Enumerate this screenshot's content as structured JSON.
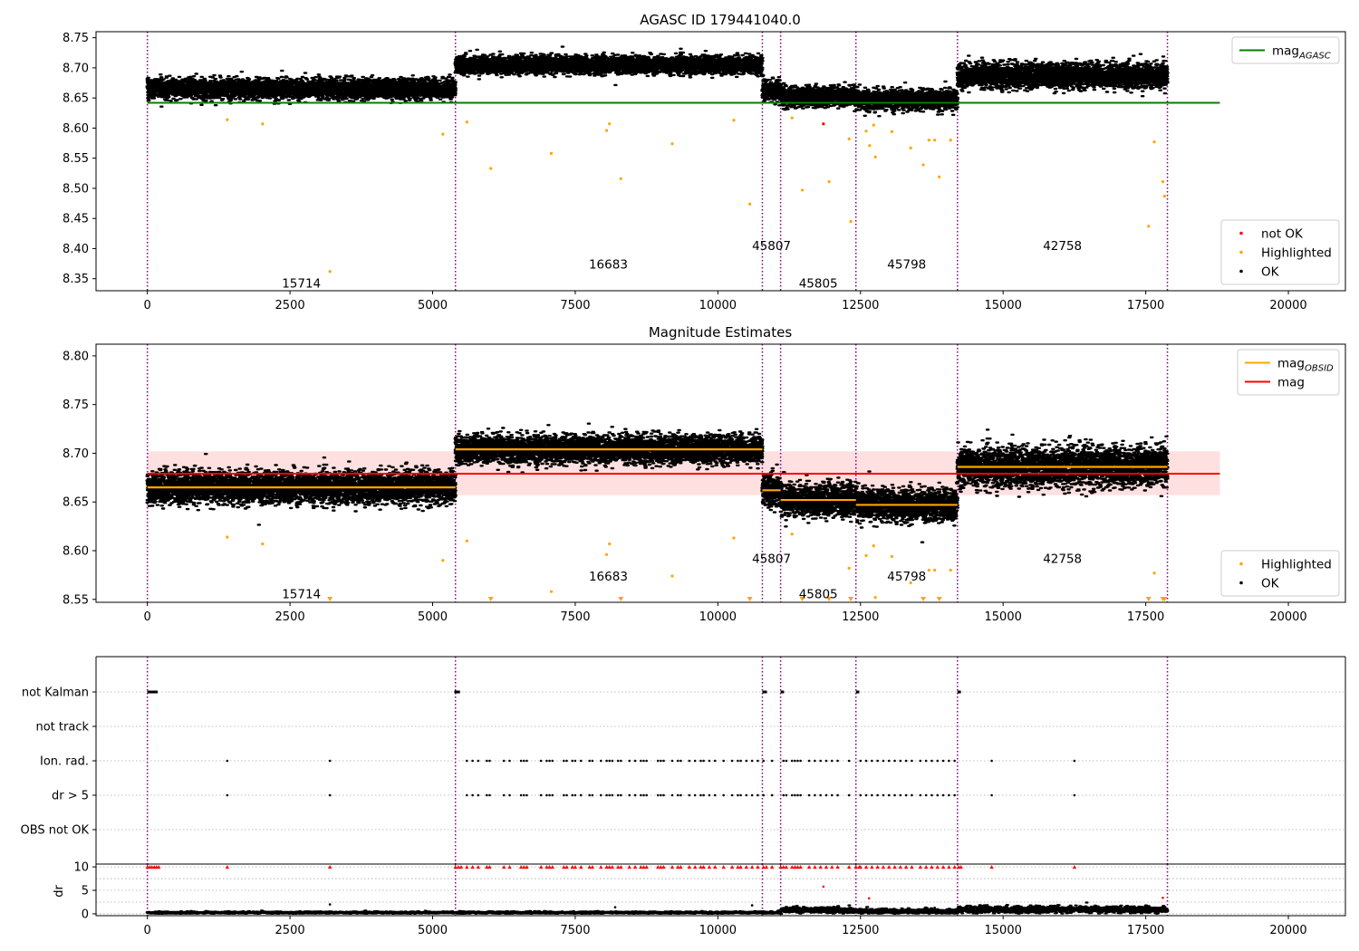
{
  "chart_data": [
    {
      "type": "scatter",
      "title": "AGASC ID 179441040.0",
      "xlim": [
        -900,
        21000
      ],
      "ylim": [
        8.33,
        8.76
      ],
      "x_ticks": [
        0,
        2500,
        5000,
        7500,
        10000,
        12500,
        15000,
        17500,
        20000
      ],
      "y_ticks": [
        8.35,
        8.4,
        8.45,
        8.5,
        8.55,
        8.6,
        8.65,
        8.7,
        8.75
      ],
      "x_tick_labels": [
        "0",
        "2500",
        "5000",
        "7500",
        "10000",
        "12500",
        "15000",
        "17500",
        "20000"
      ],
      "y_tick_labels": [
        "8.35",
        "8.40",
        "8.45",
        "8.50",
        "8.55",
        "8.60",
        "8.65",
        "8.70",
        "8.75"
      ],
      "obsid_boundaries": [
        0,
        5400,
        10780,
        11100,
        12420,
        14200,
        17880
      ],
      "hlines": [
        {
          "name": "mag_AGASC",
          "y": 8.642,
          "x_range": [
            0,
            18800
          ],
          "color": "#008000"
        }
      ],
      "segments": [
        {
          "obsid": "15714",
          "x_range": [
            0,
            5400
          ],
          "mean": 8.665,
          "spread": 0.008
        },
        {
          "obsid": "16683",
          "x_range": [
            5400,
            10780
          ],
          "mean": 8.705,
          "spread": 0.007
        },
        {
          "obsid": "45807",
          "x_range": [
            10780,
            11100
          ],
          "mean": 8.662,
          "spread": 0.008
        },
        {
          "obsid": "45805",
          "x_range": [
            11100,
            12420
          ],
          "mean": 8.652,
          "spread": 0.008
        },
        {
          "obsid": "45798",
          "x_range": [
            12420,
            14200
          ],
          "mean": 8.647,
          "spread": 0.008
        },
        {
          "obsid": "42758",
          "x_range": [
            14200,
            17880
          ],
          "mean": 8.687,
          "spread": 0.01
        }
      ],
      "obsid_label_positions": [
        {
          "obsid": "15714",
          "x": 2700,
          "y": 8.343
        },
        {
          "obsid": "16683",
          "x": 8080,
          "y": 8.374
        },
        {
          "obsid": "45807",
          "x": 10940,
          "y": 8.405
        },
        {
          "obsid": "45805",
          "x": 11760,
          "y": 8.343
        },
        {
          "obsid": "45798",
          "x": 13310,
          "y": 8.374
        },
        {
          "obsid": "42758",
          "x": 16040,
          "y": 8.405
        }
      ],
      "highlighted_points": [
        [
          1400,
          8.614
        ],
        [
          2020,
          8.607
        ],
        [
          3200,
          8.362
        ],
        [
          5180,
          8.59
        ],
        [
          5600,
          8.61
        ],
        [
          6020,
          8.533
        ],
        [
          7080,
          8.558
        ],
        [
          8050,
          8.596
        ],
        [
          8100,
          8.607
        ],
        [
          8300,
          8.516
        ],
        [
          9200,
          8.574
        ],
        [
          10280,
          8.613
        ],
        [
          10560,
          8.474
        ],
        [
          11300,
          8.617
        ],
        [
          11480,
          8.497
        ],
        [
          11950,
          8.511
        ],
        [
          12300,
          8.582
        ],
        [
          12330,
          8.445
        ],
        [
          12600,
          8.595
        ],
        [
          12660,
          8.571
        ],
        [
          12730,
          8.605
        ],
        [
          12760,
          8.552
        ],
        [
          13050,
          8.594
        ],
        [
          13380,
          8.567
        ],
        [
          13600,
          8.539
        ],
        [
          13700,
          8.58
        ],
        [
          13800,
          8.58
        ],
        [
          13880,
          8.519
        ],
        [
          14080,
          8.58
        ],
        [
          17550,
          8.437
        ],
        [
          17650,
          8.577
        ],
        [
          17800,
          8.511
        ],
        [
          17830,
          8.487
        ]
      ],
      "not_ok_points": [
        [
          11850,
          8.607
        ]
      ],
      "legends": [
        {
          "position": "top-right",
          "entries": [
            {
              "label": "mag",
              "sub": "AGASC",
              "color": "#008000",
              "kind": "line"
            }
          ]
        },
        {
          "position": "bottom-right",
          "entries": [
            {
              "label": "not OK",
              "color": "#ff0000",
              "kind": "dot"
            },
            {
              "label": "Highlighted",
              "color": "#ffa500",
              "kind": "dot"
            },
            {
              "label": "OK",
              "color": "#000000",
              "kind": "dot"
            }
          ]
        }
      ]
    },
    {
      "type": "scatter",
      "title": "Magnitude Estimates",
      "xlim": [
        -900,
        21000
      ],
      "ylim": [
        8.547,
        8.812
      ],
      "x_ticks": [
        0,
        2500,
        5000,
        7500,
        10000,
        12500,
        15000,
        17500,
        20000
      ],
      "y_ticks": [
        8.55,
        8.6,
        8.65,
        8.7,
        8.75,
        8.8
      ],
      "x_tick_labels": [
        "0",
        "2500",
        "5000",
        "7500",
        "10000",
        "12500",
        "15000",
        "17500",
        "20000"
      ],
      "y_tick_labels": [
        "8.55",
        "8.60",
        "8.65",
        "8.70",
        "8.75",
        "8.80"
      ],
      "obsid_boundaries": [
        0,
        5400,
        10780,
        11100,
        12420,
        14200,
        17880
      ],
      "hlines": [
        {
          "name": "mag",
          "y": 8.679,
          "x_range": [
            0,
            18800
          ],
          "color": "#ff0000"
        }
      ],
      "band": {
        "y_range": [
          8.657,
          8.702
        ],
        "x_range": [
          0,
          18800
        ],
        "color": "#ff0000",
        "opacity": 0.12
      },
      "segments": [
        {
          "obsid": "15714",
          "x_range": [
            0,
            5400
          ],
          "mean": 8.665,
          "spread": 0.008
        },
        {
          "obsid": "16683",
          "x_range": [
            5400,
            10780
          ],
          "mean": 8.704,
          "spread": 0.007
        },
        {
          "obsid": "45807",
          "x_range": [
            10780,
            11100
          ],
          "mean": 8.662,
          "spread": 0.008
        },
        {
          "obsid": "45805",
          "x_range": [
            11100,
            12420
          ],
          "mean": 8.652,
          "spread": 0.008
        },
        {
          "obsid": "45798",
          "x_range": [
            12420,
            14200
          ],
          "mean": 8.647,
          "spread": 0.008
        },
        {
          "obsid": "42758",
          "x_range": [
            14200,
            17880
          ],
          "mean": 8.686,
          "spread": 0.01
        }
      ],
      "obsid_label_positions": [
        {
          "obsid": "15714",
          "x": 2700,
          "y": 8.556
        },
        {
          "obsid": "16683",
          "x": 8080,
          "y": 8.574
        },
        {
          "obsid": "45807",
          "x": 10940,
          "y": 8.592
        },
        {
          "obsid": "45805",
          "x": 11760,
          "y": 8.556
        },
        {
          "obsid": "45798",
          "x": 13310,
          "y": 8.574
        },
        {
          "obsid": "42758",
          "x": 16040,
          "y": 8.592
        }
      ],
      "highlighted_points": [
        [
          1400,
          8.614
        ],
        [
          2020,
          8.607
        ],
        [
          5180,
          8.59
        ],
        [
          5600,
          8.61
        ],
        [
          7080,
          8.558
        ],
        [
          8050,
          8.596
        ],
        [
          8100,
          8.607
        ],
        [
          9200,
          8.574
        ],
        [
          10280,
          8.613
        ],
        [
          11300,
          8.617
        ],
        [
          12300,
          8.582
        ],
        [
          12600,
          8.595
        ],
        [
          12730,
          8.605
        ],
        [
          12760,
          8.552
        ],
        [
          13050,
          8.594
        ],
        [
          13380,
          8.567
        ],
        [
          13700,
          8.58
        ],
        [
          13800,
          8.58
        ],
        [
          14080,
          8.58
        ],
        [
          17650,
          8.577
        ]
      ],
      "clipped_points_x": [
        3200,
        6020,
        8300,
        10560,
        11480,
        11950,
        12330,
        13600,
        13880,
        17550,
        17800,
        17830
      ],
      "legends": [
        {
          "position": "top-right",
          "entries": [
            {
              "label": "mag",
              "sub": "OBSID",
              "color": "#ffa500",
              "kind": "line"
            },
            {
              "label": "mag",
              "sub": "",
              "color": "#ff0000",
              "kind": "line"
            }
          ]
        },
        {
          "position": "bottom-right",
          "entries": [
            {
              "label": "Highlighted",
              "color": "#ffa500",
              "kind": "dot"
            },
            {
              "label": "OK",
              "color": "#000000",
              "kind": "dot"
            }
          ]
        }
      ]
    },
    {
      "type": "scatter",
      "title": "",
      "xlim": [
        -900,
        21000
      ],
      "categories": [
        "not Kalman",
        "not track",
        "Ion. rad.",
        "dr > 5",
        "OBS not OK"
      ],
      "obsid_boundaries": [
        0,
        5400,
        10780,
        11100,
        12420,
        14200,
        17880
      ],
      "flag_points": {
        "not Kalman": [
          [
            0,
            180
          ],
          [
            5380,
            5480
          ],
          [
            10780,
            10860
          ],
          [
            11100,
            11160
          ],
          [
            12420,
            12480
          ],
          [
            14200,
            14260
          ]
        ],
        "not track": [],
        "Ion. rad.": [
          1400,
          3200,
          5600,
          5700,
          5800,
          5950,
          6000,
          6250,
          6350,
          6550,
          6600,
          6650,
          6900,
          7000,
          7050,
          7100,
          7300,
          7350,
          7450,
          7500,
          7600,
          7750,
          7800,
          7950,
          8050,
          8100,
          8150,
          8250,
          8300,
          8450,
          8550,
          8650,
          8700,
          8750,
          8950,
          9000,
          9050,
          9200,
          9300,
          9350,
          9500,
          9600,
          9700,
          9750,
          9850,
          9950,
          10100,
          10250,
          10350,
          10400,
          10500,
          10600,
          10700,
          10800,
          10950,
          11150,
          11200,
          11300,
          11350,
          11400,
          11450,
          11600,
          11700,
          11800,
          11900,
          12000,
          12100,
          12300,
          12500,
          12600,
          12700,
          12800,
          12900,
          13000,
          13100,
          13200,
          13300,
          13400,
          13550,
          13650,
          13750,
          13850,
          13950,
          14050,
          14150,
          14800,
          16250
        ],
        "dr > 5": [
          1400,
          3200,
          5600,
          5700,
          5800,
          5950,
          6000,
          6250,
          6350,
          6550,
          6600,
          6650,
          6900,
          7000,
          7050,
          7100,
          7300,
          7350,
          7450,
          7500,
          7600,
          7750,
          7800,
          7950,
          8050,
          8100,
          8150,
          8250,
          8300,
          8450,
          8550,
          8650,
          8700,
          8750,
          8950,
          9000,
          9050,
          9200,
          9300,
          9350,
          9500,
          9600,
          9700,
          9750,
          9850,
          9950,
          10100,
          10250,
          10350,
          10400,
          10500,
          10600,
          10700,
          10800,
          10950,
          11150,
          11200,
          11300,
          11350,
          11400,
          11450,
          11600,
          11700,
          11800,
          11900,
          12000,
          12100,
          12300,
          12500,
          12600,
          12700,
          12800,
          12900,
          13000,
          13100,
          13200,
          13300,
          13400,
          13550,
          13650,
          13750,
          13850,
          13950,
          14050,
          14150,
          14800,
          16250
        ],
        "OBS not OK": []
      }
    },
    {
      "type": "scatter",
      "title": "",
      "ylabel": "dr",
      "xlim": [
        -900,
        21000
      ],
      "ylim": [
        -0.4,
        10.6
      ],
      "x_ticks": [
        0,
        2500,
        5000,
        7500,
        10000,
        12500,
        15000,
        17500,
        20000
      ],
      "y_ticks": [
        0,
        5,
        10
      ],
      "x_tick_labels": [
        "0",
        "2500",
        "5000",
        "7500",
        "10000",
        "12500",
        "15000",
        "17500",
        "20000"
      ],
      "y_tick_labels": [
        "0",
        "5",
        "10"
      ],
      "obsid_boundaries": [
        0,
        5400,
        10780,
        11100,
        12420,
        14200,
        17880
      ],
      "segments": [
        {
          "x_range": [
            0,
            5400
          ],
          "mean": 0.25,
          "spread": 0.12
        },
        {
          "x_range": [
            5400,
            10780
          ],
          "mean": 0.25,
          "spread": 0.12
        },
        {
          "x_range": [
            10780,
            11100
          ],
          "mean": 0.3,
          "spread": 0.15
        },
        {
          "x_range": [
            11100,
            12420
          ],
          "mean": 0.8,
          "spread": 0.3
        },
        {
          "x_range": [
            12420,
            14200
          ],
          "mean": 0.55,
          "spread": 0.25
        },
        {
          "x_range": [
            14200,
            17880
          ],
          "mean": 0.9,
          "spread": 0.35
        }
      ],
      "outlier_points": [
        [
          3200,
          2.0
        ],
        [
          10600,
          1.8
        ],
        [
          11850,
          5.8
        ],
        [
          12650,
          3.3
        ],
        [
          17800,
          3.4
        ],
        [
          8200,
          1.4
        ],
        [
          13800,
          1.3
        ]
      ],
      "clipped_high_x": [
        0,
        40,
        80,
        120,
        160,
        200,
        1400,
        3200,
        5400,
        5450,
        5500,
        5600,
        5700,
        5800,
        5950,
        6000,
        6250,
        6350,
        6550,
        6600,
        6650,
        6900,
        7000,
        7050,
        7100,
        7300,
        7350,
        7450,
        7500,
        7600,
        7750,
        7800,
        7950,
        8050,
        8100,
        8150,
        8250,
        8300,
        8450,
        8550,
        8650,
        8700,
        8750,
        8950,
        9000,
        9050,
        9200,
        9300,
        9350,
        9500,
        9600,
        9700,
        9750,
        9850,
        9950,
        10100,
        10250,
        10350,
        10400,
        10500,
        10600,
        10700,
        10800,
        10850,
        10950,
        11100,
        11150,
        11200,
        11300,
        11350,
        11400,
        11450,
        11600,
        11700,
        11800,
        11900,
        12000,
        12100,
        12300,
        12420,
        12480,
        12500,
        12600,
        12700,
        12800,
        12900,
        13000,
        13100,
        13200,
        13300,
        13400,
        13550,
        13650,
        13750,
        13850,
        13950,
        14050,
        14150,
        14220,
        14260,
        14800,
        16250
      ]
    }
  ]
}
